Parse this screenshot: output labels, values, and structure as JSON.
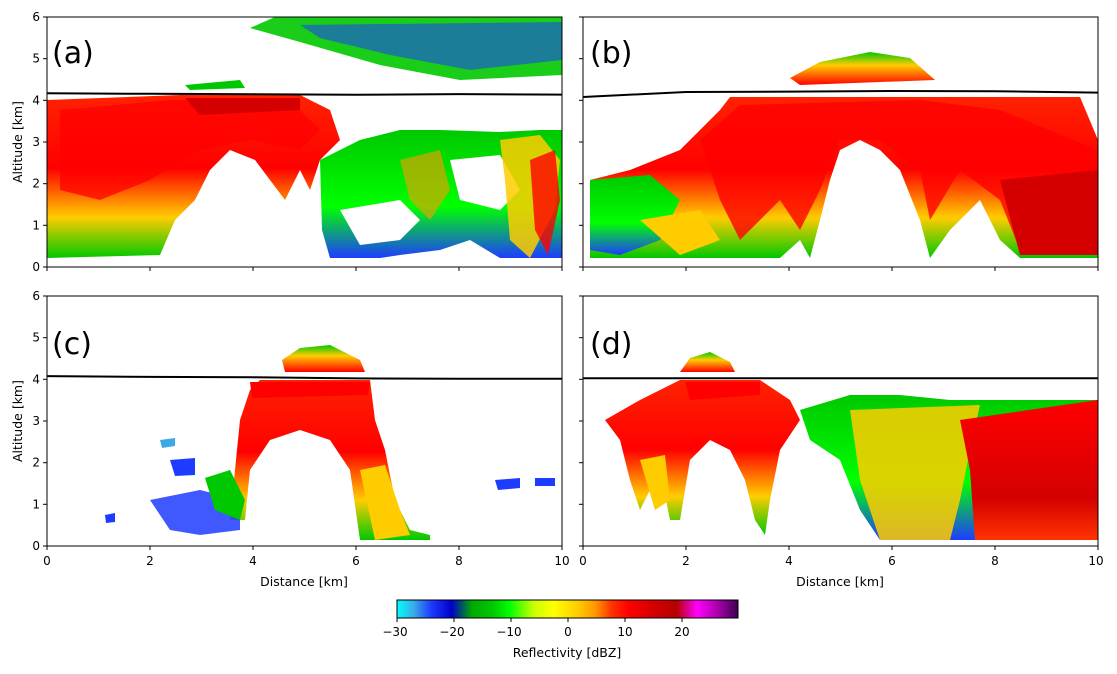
{
  "chart_data": {
    "type": "heatmap",
    "description_kind": "radar reflectivity cross-sections (RHI), 4 panels",
    "x_range": [
      0,
      10
    ],
    "y_range": [
      0,
      6
    ],
    "x_ticks": [
      0,
      2,
      4,
      6,
      8,
      10
    ],
    "y_ticks": [
      0,
      1,
      2,
      3,
      4,
      5,
      6
    ],
    "xlabel": "Distance [km]",
    "ylabel": "Altitude [km]",
    "grid": false,
    "panels": [
      {
        "label": "(a)",
        "freezing_level": [
          [
            0,
            4.17
          ],
          [
            2,
            4.15
          ],
          [
            4,
            4.13
          ],
          [
            6,
            4.12
          ],
          [
            8,
            4.15
          ],
          [
            10,
            4.14
          ]
        ]
      },
      {
        "label": "(b)",
        "freezing_level": [
          [
            0,
            4.1
          ],
          [
            2,
            4.22
          ],
          [
            4,
            4.23
          ],
          [
            6,
            4.25
          ],
          [
            8,
            4.24
          ],
          [
            10,
            4.2
          ]
        ]
      },
      {
        "label": "(c)",
        "freezing_level": [
          [
            0,
            4.08
          ],
          [
            2,
            4.06
          ],
          [
            4,
            4.05
          ],
          [
            6,
            4.03
          ],
          [
            8,
            4.02
          ],
          [
            10,
            4.02
          ]
        ]
      },
      {
        "label": "(d)",
        "freezing_level": [
          [
            0,
            4.05
          ],
          [
            2,
            4.05
          ],
          [
            4,
            4.05
          ],
          [
            6,
            4.05
          ],
          [
            8,
            4.05
          ],
          [
            10,
            4.05
          ]
        ]
      }
    ],
    "colorbar": {
      "label": "Reflectivity [dBZ]",
      "range": [
        -30,
        30
      ],
      "ticks": [
        -30,
        -20,
        -10,
        0,
        10,
        20
      ],
      "tick_labels": [
        "−30",
        "−20",
        "−10",
        "0",
        "10",
        "20"
      ]
    }
  },
  "colors": {
    "colormap_stops": [
      "#00ffff",
      "#3aa9e6",
      "#1e3cff",
      "#0000c8",
      "#00aa00",
      "#00c800",
      "#00ff00",
      "#c8ff00",
      "#ffff00",
      "#ffcc00",
      "#ff9900",
      "#ff3300",
      "#ff0000",
      "#d40000",
      "#b80000",
      "#ff00ff",
      "#aa00aa",
      "#3d0050"
    ],
    "freezing_line": "#000000"
  }
}
